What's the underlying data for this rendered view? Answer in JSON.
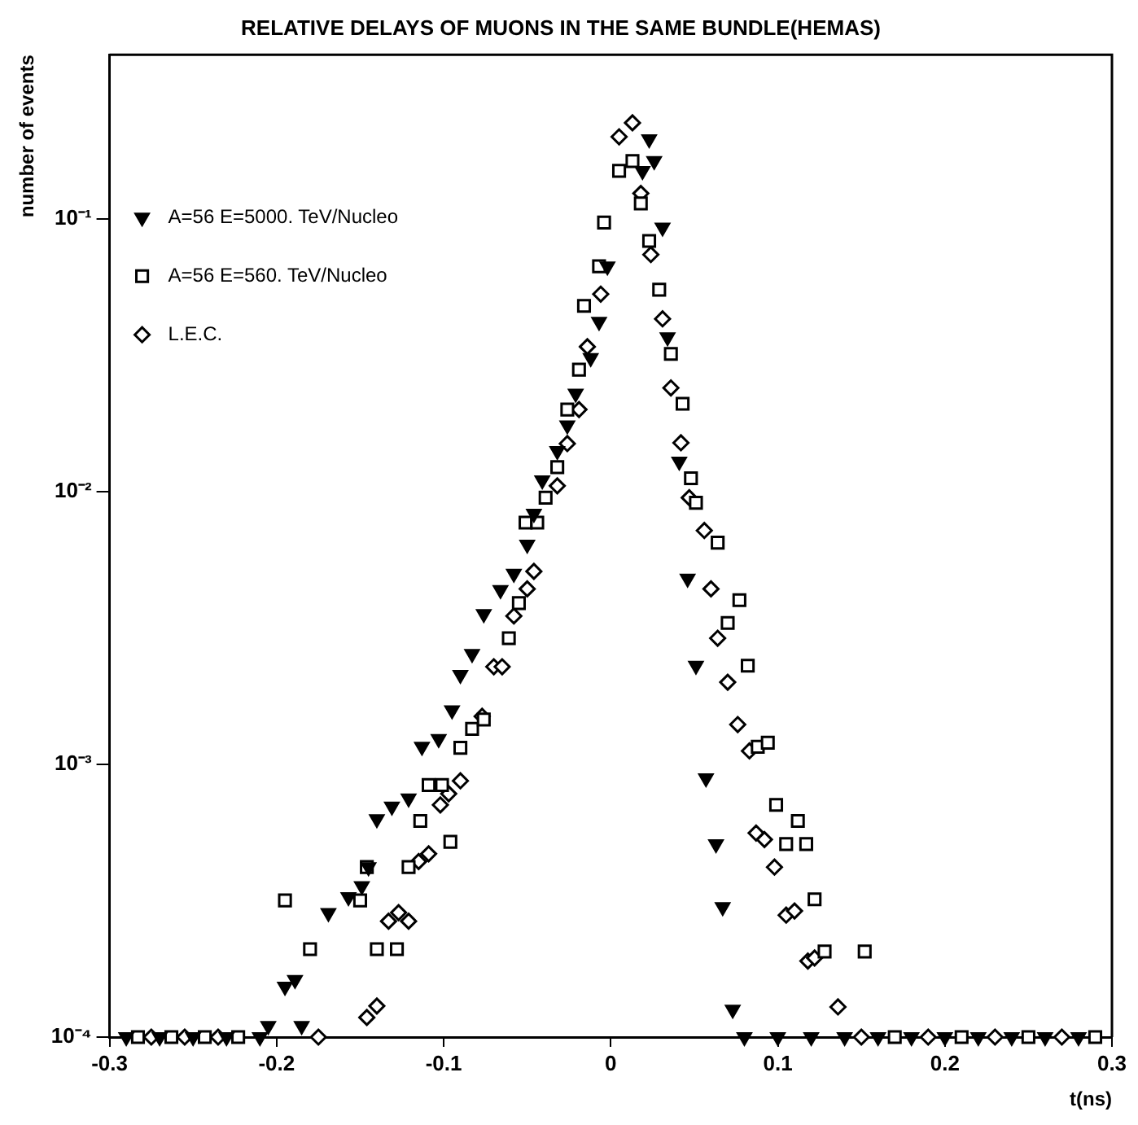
{
  "chart_data": {
    "type": "scatter",
    "title": "RELATIVE DELAYS OF MUONS IN THE SAME BUNDLE(HEMAS)",
    "xlabel": "t(ns)",
    "ylabel": "number of events",
    "log": "y",
    "xlim": [
      -0.3,
      0.3
    ],
    "ylim": [
      0.0001,
      0.4
    ],
    "xticks": [
      -0.3,
      -0.2,
      -0.1,
      0,
      0.1,
      0.2,
      0.3
    ],
    "yticks": [
      {
        "value": 0.0001,
        "label": "10⁻⁴"
      },
      {
        "value": 0.001,
        "label": "10⁻³"
      },
      {
        "value": 0.01,
        "label": "10⁻²"
      },
      {
        "value": 0.1,
        "label": "10⁻¹"
      }
    ],
    "grid": false,
    "legend": "top left",
    "series": [
      {
        "name": "A=56 E=5000. TeV/Nucleo",
        "color": "#000000",
        "marker": "triangle",
        "x": [
          -0.29,
          -0.27,
          -0.25,
          -0.23,
          -0.21,
          -0.205,
          -0.185,
          -0.195,
          -0.189,
          -0.169,
          -0.157,
          -0.149,
          -0.145,
          -0.14,
          -0.131,
          -0.121,
          -0.113,
          -0.103,
          -0.095,
          -0.09,
          -0.083,
          -0.076,
          -0.066,
          -0.058,
          -0.05,
          -0.046,
          -0.041,
          -0.032,
          -0.026,
          -0.021,
          -0.012,
          -0.007,
          -0.002,
          0.019,
          0.023,
          0.026,
          0.031,
          0.034,
          0.041,
          0.046,
          0.051,
          0.057,
          0.063,
          0.067,
          0.073,
          0.08,
          0.1,
          0.12,
          0.14,
          0.16,
          0.18,
          0.2,
          0.22,
          0.24,
          0.26,
          0.28
        ],
        "values": [
          0.0001,
          0.0001,
          0.0001,
          0.0001,
          0.0001,
          0.00011,
          0.00011,
          0.000153,
          0.000162,
          0.000285,
          0.000326,
          0.000358,
          0.00042,
          0.00063,
          0.0007,
          0.00075,
          0.00116,
          0.00124,
          0.00158,
          0.00213,
          0.00254,
          0.00356,
          0.00436,
          0.005,
          0.0064,
          0.0083,
          0.011,
          0.0141,
          0.0175,
          0.0229,
          0.0309,
          0.042,
          0.067,
          0.15,
          0.196,
          0.163,
          0.093,
          0.0368,
          0.0129,
          0.0048,
          0.0023,
          0.00089,
          0.00051,
          0.0003,
          0.000126,
          0.0001,
          0.0001,
          0.0001,
          0.0001,
          0.0001,
          0.0001,
          0.0001,
          0.0001,
          0.0001,
          0.0001,
          0.0001
        ]
      },
      {
        "name": "A=56 E=560. TeV/Nucleo",
        "color": "#000000",
        "marker": "square",
        "x": [
          -0.283,
          -0.263,
          -0.243,
          -0.223,
          -0.195,
          -0.18,
          -0.15,
          -0.146,
          -0.14,
          -0.128,
          -0.121,
          -0.114,
          -0.109,
          -0.101,
          -0.096,
          -0.09,
          -0.083,
          -0.076,
          -0.061,
          -0.055,
          -0.051,
          -0.044,
          -0.039,
          -0.032,
          -0.026,
          -0.019,
          -0.016,
          -0.007,
          -0.004,
          0.005,
          0.013,
          0.018,
          0.023,
          0.029,
          0.036,
          0.043,
          0.048,
          0.051,
          0.064,
          0.07,
          0.077,
          0.082,
          0.088,
          0.094,
          0.099,
          0.105,
          0.112,
          0.117,
          0.122,
          0.128,
          0.152,
          0.17,
          0.21,
          0.25,
          0.29
        ],
        "values": [
          0.0001,
          0.0001,
          0.0001,
          0.0001,
          0.000317,
          0.00021,
          0.000317,
          0.00042,
          0.00021,
          0.00021,
          0.00042,
          0.00062,
          0.00084,
          0.00084,
          0.00052,
          0.00115,
          0.00135,
          0.00146,
          0.0029,
          0.0039,
          0.0077,
          0.0077,
          0.0095,
          0.0123,
          0.02,
          0.028,
          0.048,
          0.067,
          0.097,
          0.15,
          0.163,
          0.114,
          0.083,
          0.055,
          0.032,
          0.021,
          0.0112,
          0.0091,
          0.0065,
          0.0033,
          0.004,
          0.0023,
          0.00116,
          0.0012,
          0.00071,
          0.00051,
          0.00062,
          0.00051,
          0.00032,
          0.000206,
          0.000206,
          0.0001,
          0.0001,
          0.0001,
          0.0001
        ]
      },
      {
        "name": "L.E.C.",
        "color": "#000000",
        "marker": "diamond",
        "x": [
          -0.275,
          -0.255,
          -0.235,
          -0.175,
          -0.146,
          -0.14,
          -0.133,
          -0.127,
          -0.121,
          -0.115,
          -0.109,
          -0.102,
          -0.097,
          -0.09,
          -0.077,
          -0.07,
          -0.065,
          -0.058,
          -0.05,
          -0.046,
          -0.032,
          -0.026,
          -0.019,
          -0.014,
          -0.006,
          0.005,
          0.013,
          0.018,
          0.024,
          0.031,
          0.036,
          0.042,
          0.047,
          0.056,
          0.06,
          0.064,
          0.07,
          0.076,
          0.083,
          0.087,
          0.092,
          0.098,
          0.105,
          0.11,
          0.118,
          0.122,
          0.136,
          0.15,
          0.19,
          0.23,
          0.27
        ],
        "values": [
          0.0001,
          0.0001,
          0.0001,
          0.0001,
          0.000118,
          0.00013,
          0.000266,
          0.000286,
          0.000266,
          0.00044,
          0.00047,
          0.00071,
          0.00078,
          0.00087,
          0.0015,
          0.00228,
          0.00228,
          0.0035,
          0.0044,
          0.0051,
          0.0105,
          0.015,
          0.02,
          0.034,
          0.053,
          0.2,
          0.225,
          0.124,
          0.074,
          0.043,
          0.024,
          0.0151,
          0.0095,
          0.0072,
          0.0044,
          0.0029,
          0.002,
          0.0014,
          0.00112,
          0.00056,
          0.00053,
          0.00042,
          0.00028,
          0.00029,
          0.00019,
          0.000195,
          0.000129,
          0.0001,
          0.0001,
          0.0001,
          0.0001
        ]
      }
    ]
  }
}
